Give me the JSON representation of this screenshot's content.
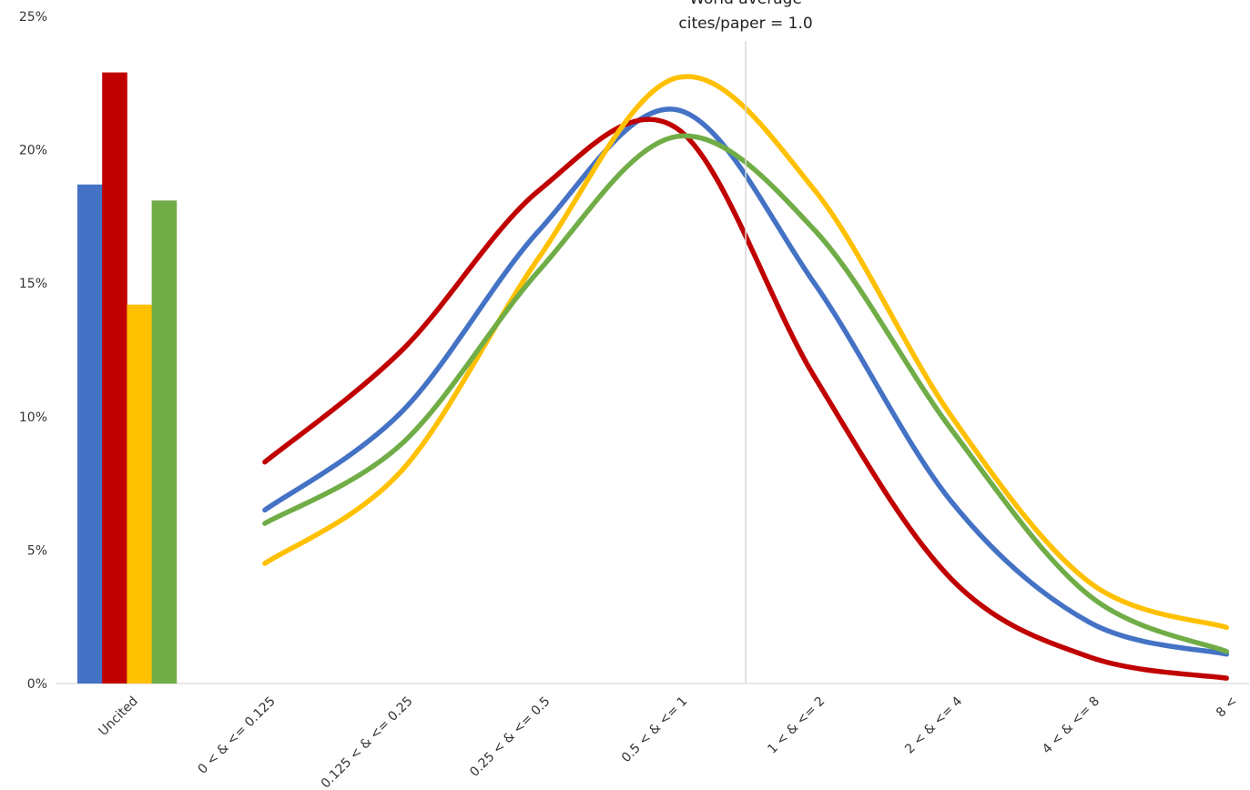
{
  "chart_data": {
    "type": "bar+line",
    "title": "",
    "xlabel": "",
    "ylabel": "",
    "ylim": [
      0,
      25
    ],
    "y_ticks": [
      "0%",
      "5%",
      "10%",
      "15%",
      "20%",
      "25%"
    ],
    "grid": false,
    "legend": "none",
    "bar_category": "Uncited",
    "categories": [
      "0 < & <= 0.125",
      "0.125 < & <= 0.25",
      "0.25 < & <= 0.5",
      "0.5 < & <= 1",
      "1 < & <= 2",
      "2 < & <= 4",
      "4 < & <= 8",
      "8 <"
    ],
    "series": [
      {
        "color": "#4472C4",
        "uncited": 18.7,
        "values": [
          6.5,
          10.2,
          17.0,
          21.5,
          15.0,
          6.8,
          2.3,
          1.1
        ]
      },
      {
        "color": "#C00000",
        "uncited": 22.9,
        "values": [
          8.3,
          12.5,
          18.5,
          20.8,
          11.5,
          3.9,
          1.0,
          0.2
        ]
      },
      {
        "color": "#FFC000",
        "uncited": 14.2,
        "values": [
          4.5,
          8.0,
          16.0,
          22.7,
          18.5,
          10.0,
          3.8,
          2.1
        ]
      },
      {
        "color": "#70AD47",
        "uncited": 18.1,
        "values": [
          6.0,
          9.0,
          15.5,
          20.5,
          17.0,
          9.5,
          3.3,
          1.2
        ]
      }
    ],
    "annotation": {
      "line1": "World average",
      "line2": "cites/paper = 1.0",
      "x_value": 1.0
    }
  }
}
